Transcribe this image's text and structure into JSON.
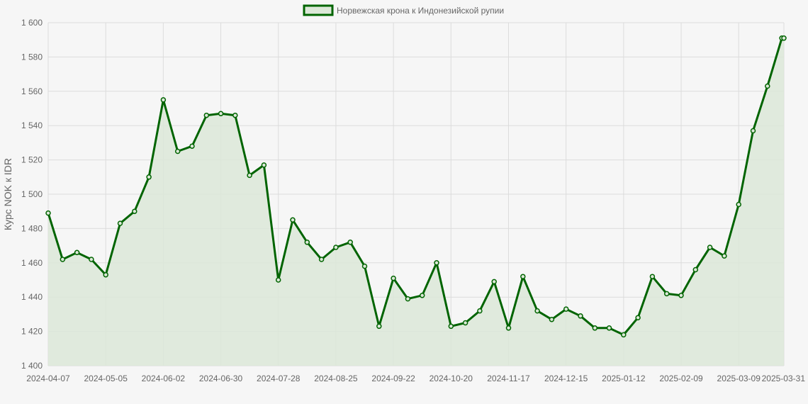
{
  "chart_data": {
    "type": "line",
    "title": "",
    "ylabel": "Курс NOK к IDR",
    "xlabel": "",
    "ylim": [
      1400,
      1600
    ],
    "yticks": [
      1400,
      1420,
      1440,
      1460,
      1480,
      1500,
      1520,
      1540,
      1560,
      1580,
      1600
    ],
    "ytick_labels": [
      "1 400",
      "1 420",
      "1 440",
      "1 460",
      "1 480",
      "1 500",
      "1 520",
      "1 540",
      "1 560",
      "1 580",
      "1 600"
    ],
    "xtick_labels": [
      "2024-04-07",
      "2024-05-05",
      "2024-06-02",
      "2024-06-30",
      "2024-07-28",
      "2024-08-25",
      "2024-09-22",
      "2024-10-20",
      "2024-11-17",
      "2024-12-15",
      "2025-01-12",
      "2025-02-09",
      "2025-03-09",
      "2025-03-31"
    ],
    "grid": true,
    "legend_position": "top",
    "colors": {
      "line": "#006400",
      "fill": "#dce8d8",
      "grid": "#dcdcdc"
    },
    "x": [
      "2024-04-07",
      "2024-04-14",
      "2024-04-21",
      "2024-04-28",
      "2024-05-05",
      "2024-05-12",
      "2024-05-19",
      "2024-05-26",
      "2024-06-02",
      "2024-06-09",
      "2024-06-16",
      "2024-06-23",
      "2024-06-30",
      "2024-07-07",
      "2024-07-14",
      "2024-07-21",
      "2024-07-28",
      "2024-08-04",
      "2024-08-11",
      "2024-08-18",
      "2024-08-25",
      "2024-09-01",
      "2024-09-08",
      "2024-09-15",
      "2024-09-22",
      "2024-09-29",
      "2024-10-06",
      "2024-10-13",
      "2024-10-20",
      "2024-10-27",
      "2024-11-03",
      "2024-11-10",
      "2024-11-17",
      "2024-11-24",
      "2024-12-01",
      "2024-12-08",
      "2024-12-15",
      "2024-12-22",
      "2024-12-29",
      "2025-01-05",
      "2025-01-12",
      "2025-01-19",
      "2025-01-26",
      "2025-02-02",
      "2025-02-09",
      "2025-02-16",
      "2025-02-23",
      "2025-03-02",
      "2025-03-09",
      "2025-03-16",
      "2025-03-23",
      "2025-03-30",
      "2025-03-31"
    ],
    "series": [
      {
        "name": "Норвежская крона к Индонезийской рупии",
        "values": [
          1489,
          1462,
          1466,
          1462,
          1453,
          1483,
          1490,
          1510,
          1555,
          1525,
          1528,
          1546,
          1547,
          1546,
          1511,
          1517,
          1450,
          1485,
          1472,
          1462,
          1469,
          1472,
          1458,
          1423,
          1451,
          1439,
          1441,
          1460,
          1423,
          1425,
          1432,
          1449,
          1422,
          1452,
          1432,
          1427,
          1433,
          1429,
          1422,
          1422,
          1418,
          1428,
          1452,
          1442,
          1441,
          1456,
          1469,
          1464,
          1494,
          1537,
          1563,
          1591,
          1591
        ]
      }
    ]
  }
}
